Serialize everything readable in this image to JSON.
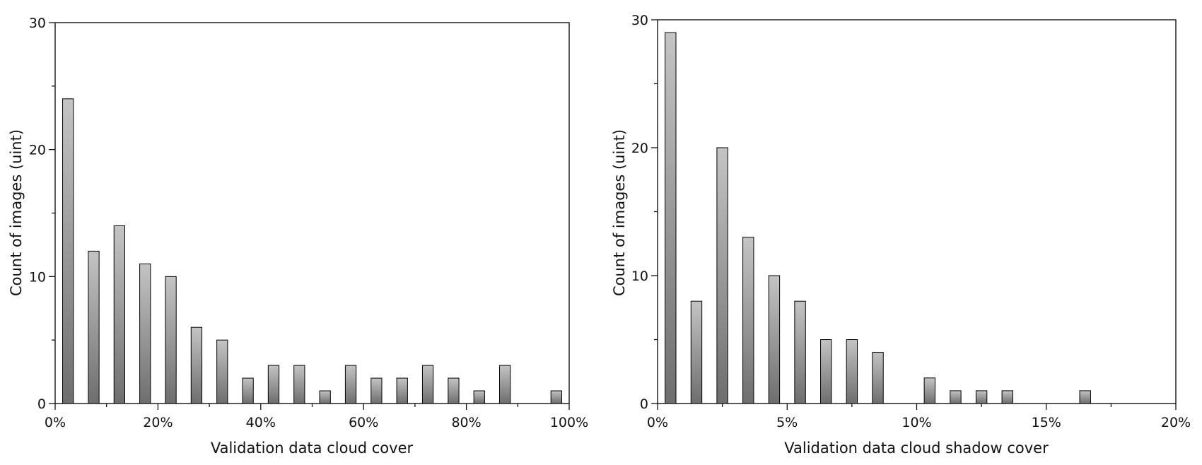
{
  "chart_data": [
    {
      "type": "bar",
      "xlabel": "Validation data cloud cover",
      "ylabel": "Count of  images (uint)",
      "ylim": [
        0,
        30
      ],
      "yticks": [
        "0",
        "10",
        "20",
        "30"
      ],
      "xlim": [
        0,
        100
      ],
      "xticks": [
        "0%",
        "20%",
        "40%",
        "60%",
        "80%",
        "100%"
      ],
      "x": [
        2.5,
        7.5,
        12.5,
        17.5,
        22.5,
        27.5,
        32.5,
        37.5,
        42.5,
        47.5,
        52.5,
        57.5,
        62.5,
        67.5,
        72.5,
        77.5,
        82.5,
        87.5,
        92.5,
        97.5
      ],
      "values": [
        24,
        12,
        14,
        11,
        10,
        6,
        5,
        2,
        3,
        3,
        1,
        3,
        2,
        2,
        3,
        2,
        1,
        3,
        0,
        1
      ],
      "grid": false,
      "bar_fill_top": "#c4c4c4",
      "bar_fill_bottom": "#6e6e6e"
    },
    {
      "type": "bar",
      "xlabel": "Validation data cloud shadow cover",
      "ylabel": "Count of  images (uint)",
      "ylim": [
        0,
        30
      ],
      "yticks": [
        "0",
        "10",
        "20",
        "30"
      ],
      "xlim": [
        0,
        20
      ],
      "xticks": [
        "0%",
        "5%",
        "10%",
        "15%",
        "20%"
      ],
      "x": [
        0.5,
        1.5,
        2.5,
        3.5,
        4.5,
        5.5,
        6.5,
        7.5,
        8.5,
        9.5,
        10.5,
        11.5,
        12.5,
        13.5,
        14.5,
        15.5,
        16.5,
        17.5,
        18.5,
        19.5
      ],
      "values": [
        29,
        8,
        20,
        13,
        10,
        8,
        5,
        5,
        4,
        0,
        2,
        1,
        1,
        1,
        0,
        0,
        1,
        0,
        0,
        0
      ],
      "grid": false,
      "bar_fill_top": "#c4c4c4",
      "bar_fill_bottom": "#6e6e6e"
    }
  ]
}
